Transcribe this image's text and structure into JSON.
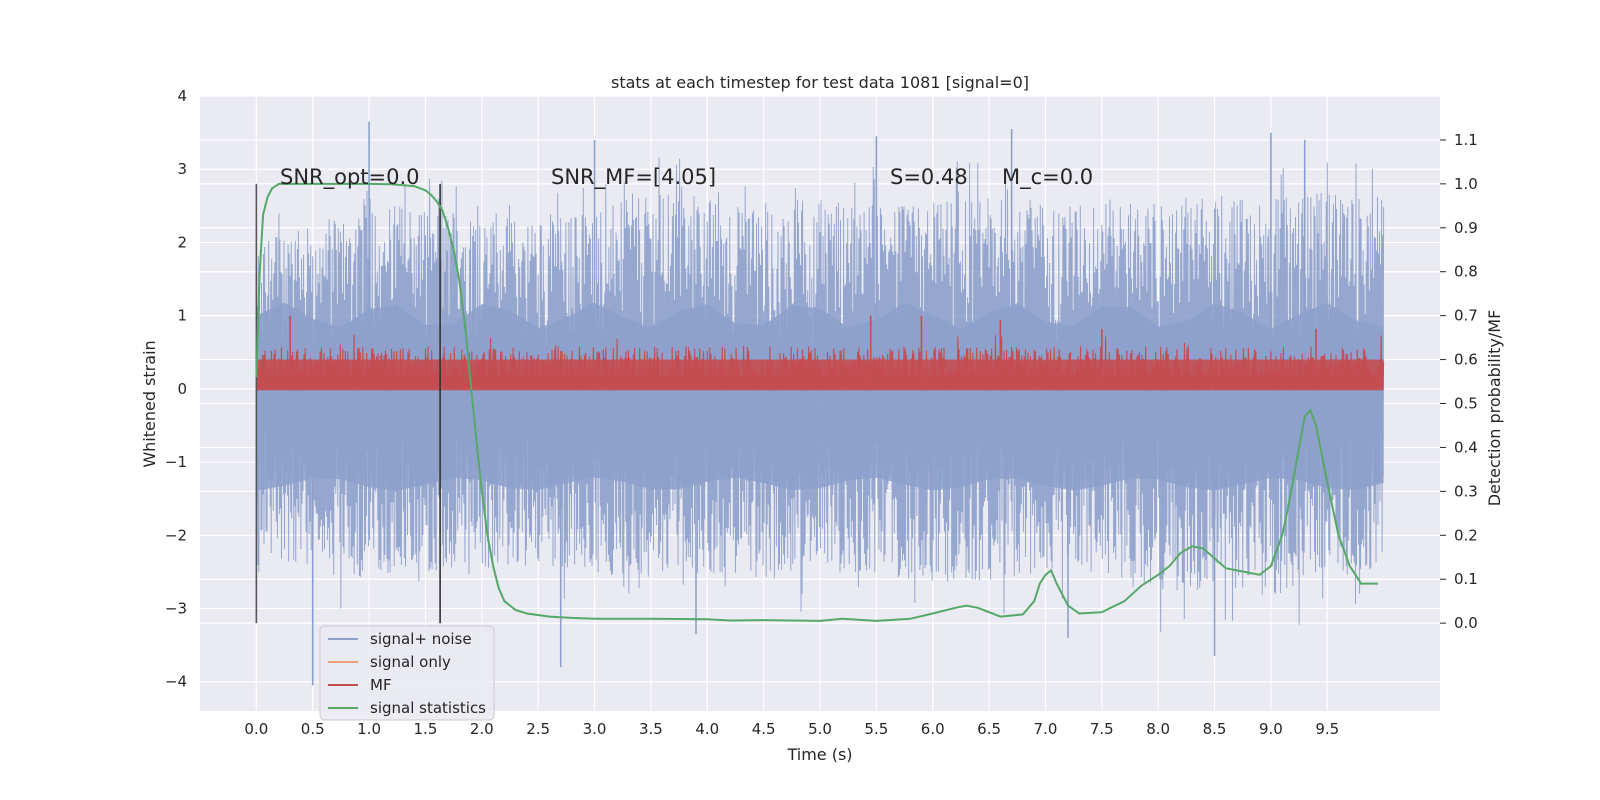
{
  "chart_data": {
    "type": "line",
    "title": "stats at each timestep for test data 1081 [signal=0]",
    "xlabel": "Time (s)",
    "ylabel": "Whitened strain",
    "y2label": "Detection probability/MF",
    "xlim": [
      -0.5,
      10.5
    ],
    "ylim": [
      -4.4,
      4.0
    ],
    "y2lim": [
      -0.2,
      1.2
    ],
    "x_ticks": [
      0.0,
      0.5,
      1.0,
      1.5,
      2.0,
      2.5,
      3.0,
      3.5,
      4.0,
      4.5,
      5.0,
      5.5,
      6.0,
      6.5,
      7.0,
      7.5,
      8.0,
      8.5,
      9.0,
      9.5
    ],
    "x_tick_labels": [
      "0.0",
      "0.5",
      "1.0",
      "1.5",
      "2.0",
      "2.5",
      "3.0",
      "3.5",
      "4.0",
      "4.5",
      "5.0",
      "5.5",
      "6.0",
      "6.5",
      "7.0",
      "7.5",
      "8.0",
      "8.5",
      "9.0",
      "9.5"
    ],
    "y_ticks": [
      -4,
      -3,
      -2,
      -1,
      0,
      1,
      2,
      3,
      4
    ],
    "y_tick_labels": [
      "−4",
      "−3",
      "−2",
      "−1",
      "0",
      "1",
      "2",
      "3",
      "4"
    ],
    "y2_ticks": [
      0.0,
      0.1,
      0.2,
      0.3,
      0.4,
      0.5,
      0.6,
      0.7,
      0.8,
      0.9,
      1.0,
      1.1
    ],
    "y2_tick_labels": [
      "0.0",
      "0.1",
      "0.2",
      "0.3",
      "0.4",
      "0.5",
      "0.6",
      "0.7",
      "0.8",
      "0.9",
      "1.0",
      "1.1"
    ],
    "grid": true,
    "legend_position": "lower-left",
    "series": [
      {
        "name": "signal+ noise",
        "color": "#8da0cb",
        "axis": "left",
        "x_range": [
          0.0,
          10.0
        ],
        "envelope_pos": [
          2.0,
          2.2,
          2.6,
          2.5,
          2.4,
          2.3,
          2.4,
          2.6,
          2.7,
          2.5,
          2.6,
          2.6,
          2.5,
          2.6,
          2.6,
          2.5,
          2.6,
          2.5,
          2.7,
          2.6,
          2.7,
          2.8
        ],
        "envelope_neg": [
          -2.3,
          -2.4,
          -2.6,
          -2.5,
          -2.5,
          -2.4,
          -2.5,
          -2.6,
          -2.5,
          -2.6,
          -2.6,
          -2.5,
          -2.6,
          -2.7,
          -2.6,
          -2.5,
          -2.6,
          -2.8,
          -2.7,
          -2.9,
          -2.6,
          -2.4
        ],
        "notable_peaks": [
          {
            "x": 1.0,
            "y": 3.65
          },
          {
            "x": 3.0,
            "y": 3.4
          },
          {
            "x": 5.5,
            "y": 3.45
          },
          {
            "x": 6.7,
            "y": 3.55
          },
          {
            "x": 9.0,
            "y": 3.5
          },
          {
            "x": 9.3,
            "y": 3.4
          },
          {
            "x": 0.5,
            "y": -4.05
          },
          {
            "x": 2.7,
            "y": -3.8
          },
          {
            "x": 8.5,
            "y": -3.65
          },
          {
            "x": 7.2,
            "y": -3.4
          },
          {
            "x": 3.9,
            "y": -3.35
          }
        ]
      },
      {
        "name": "signal only",
        "color": "#e8a07a",
        "axis": "left",
        "x": [
          0.0,
          10.0
        ],
        "values": [
          0.0,
          0.0
        ]
      },
      {
        "name": "MF",
        "color": "#c44e52",
        "axis": "right",
        "x_range": [
          0.0,
          10.0
        ],
        "baseline": 0.53,
        "typical_top": 0.63,
        "notable_peaks": [
          {
            "x": 0.3,
            "y": 0.7
          },
          {
            "x": 5.45,
            "y": 0.7
          },
          {
            "x": 5.9,
            "y": 0.7
          },
          {
            "x": 6.6,
            "y": 0.69
          },
          {
            "x": 7.5,
            "y": 0.67
          },
          {
            "x": 9.4,
            "y": 0.67
          }
        ]
      },
      {
        "name": "signal statistics",
        "color": "#55a868",
        "axis": "right",
        "x": [
          0.0,
          0.03,
          0.06,
          0.1,
          0.14,
          0.2,
          0.3,
          0.5,
          0.8,
          1.0,
          1.2,
          1.4,
          1.5,
          1.55,
          1.6,
          1.65,
          1.7,
          1.75,
          1.8,
          1.85,
          1.9,
          1.95,
          2.0,
          2.05,
          2.1,
          2.15,
          2.2,
          2.3,
          2.4,
          2.6,
          2.8,
          3.0,
          3.5,
          4.0,
          4.2,
          4.5,
          5.0,
          5.2,
          5.5,
          5.8,
          6.0,
          6.2,
          6.3,
          6.4,
          6.6,
          6.8,
          6.9,
          6.95,
          7.0,
          7.05,
          7.1,
          7.2,
          7.3,
          7.5,
          7.7,
          7.85,
          8.0,
          8.1,
          8.2,
          8.3,
          8.4,
          8.6,
          8.8,
          8.9,
          9.0,
          9.1,
          9.15,
          9.2,
          9.25,
          9.3,
          9.35,
          9.4,
          9.5,
          9.6,
          9.7,
          9.8,
          9.95
        ],
        "values": [
          0.56,
          0.8,
          0.93,
          0.97,
          0.99,
          1.0,
          1.0,
          1.0,
          1.0,
          1.0,
          0.999,
          0.995,
          0.985,
          0.975,
          0.96,
          0.94,
          0.9,
          0.85,
          0.78,
          0.68,
          0.55,
          0.42,
          0.3,
          0.2,
          0.13,
          0.08,
          0.05,
          0.03,
          0.022,
          0.015,
          0.012,
          0.01,
          0.01,
          0.009,
          0.006,
          0.007,
          0.005,
          0.01,
          0.005,
          0.01,
          0.022,
          0.035,
          0.04,
          0.035,
          0.015,
          0.02,
          0.05,
          0.09,
          0.11,
          0.12,
          0.09,
          0.04,
          0.022,
          0.025,
          0.05,
          0.085,
          0.11,
          0.13,
          0.16,
          0.175,
          0.17,
          0.125,
          0.115,
          0.11,
          0.13,
          0.2,
          0.26,
          0.33,
          0.4,
          0.47,
          0.485,
          0.45,
          0.32,
          0.2,
          0.13,
          0.09,
          0.09
        ]
      }
    ],
    "vlines": [
      {
        "x": 0.0,
        "y_from": -3.2,
        "y_to": 2.8,
        "color": "#555555"
      },
      {
        "x": 1.63,
        "y_from": -3.2,
        "y_to": 2.8,
        "color": "#333333"
      }
    ],
    "annotations": [
      {
        "id": "snr-opt",
        "text": "SNR_opt=0.0",
        "x": 0.2,
        "y": 3.0
      },
      {
        "id": "snr-mf",
        "text": "SNR_MF=[4.05]",
        "x": 2.6,
        "y": 3.0
      },
      {
        "id": "s",
        "text": "S=0.48",
        "x": 5.6,
        "y": 3.0
      },
      {
        "id": "mc",
        "text": "M_c=0.0",
        "x": 6.6,
        "y": 3.0
      }
    ]
  }
}
